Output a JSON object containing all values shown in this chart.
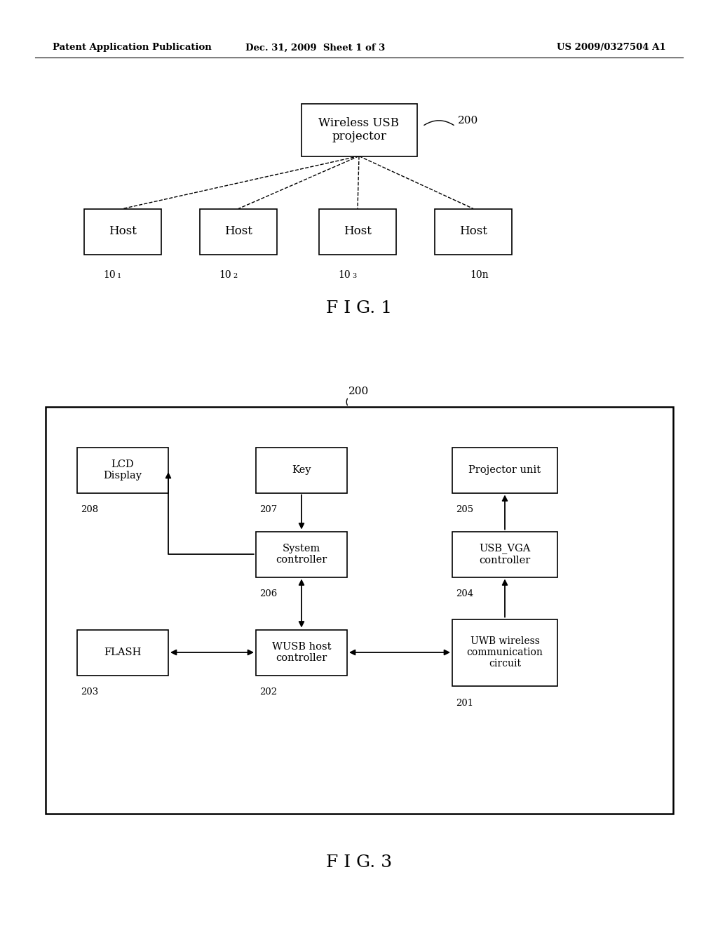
{
  "bg_color": "#ffffff",
  "header_left": "Patent Application Publication",
  "header_mid": "Dec. 31, 2009  Sheet 1 of 3",
  "header_right": "US 2009/0327504 A1",
  "fig1_caption": "F I G. 1",
  "fig3_caption": "F I G. 3",
  "fig1": {
    "root_label": "Wireless USB\nprojector",
    "root_ref": "200",
    "host_labels": [
      "Host",
      "Host",
      "Host",
      "Host"
    ],
    "host_refs": [
      "10",
      "10",
      "10",
      "10n"
    ],
    "host_subs": [
      "1",
      "2",
      "3",
      ""
    ]
  },
  "fig3": {
    "ref_200": "200",
    "lcd_label": "LCD\nDisplay",
    "key_label": "Key",
    "proj_label": "Projector unit",
    "sys_label": "System\ncontroller",
    "usbvga_label": "USB_VGA\ncontroller",
    "flash_label": "FLASH",
    "wusb_label": "WUSB host\ncontroller",
    "uwb_label": "UWB wireless\ncommunication\ncircuit",
    "lcd_ref": "208",
    "key_ref": "207",
    "proj_ref": "205",
    "sys_ref": "206",
    "usbvga_ref": "204",
    "flash_ref": "203",
    "wusb_ref": "202",
    "uwb_ref": "201"
  }
}
